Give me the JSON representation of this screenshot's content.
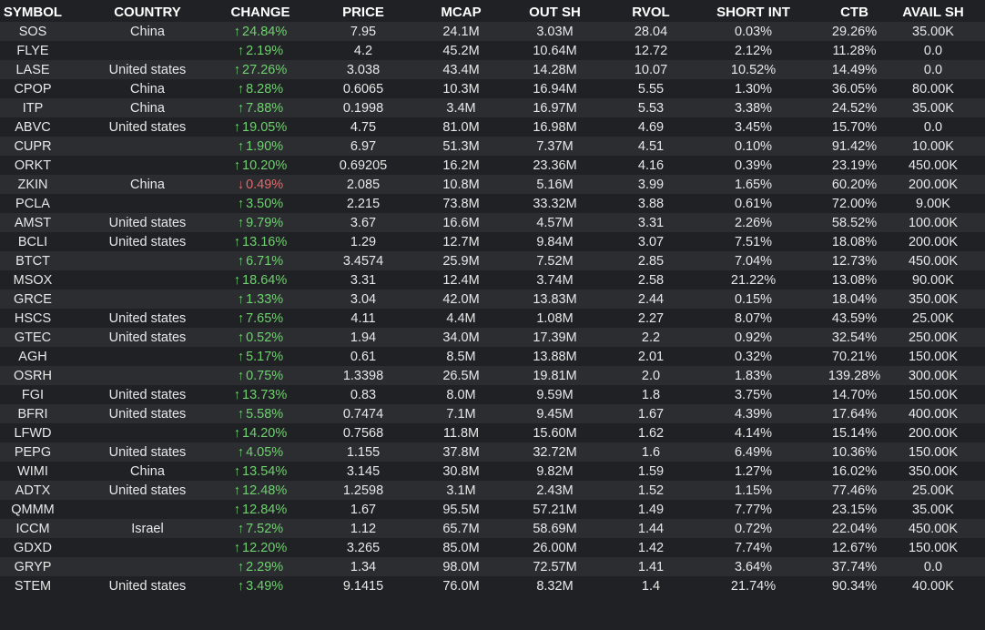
{
  "colors": {
    "background": "#202124",
    "stripe": "#2c2d31",
    "text": "#e8e8e8",
    "up": "#6fd16f",
    "down": "#e36a6a"
  },
  "headers": [
    "SYMBOL",
    "COUNTRY",
    "CHANGE",
    "PRICE",
    "MCAP",
    "OUT SH",
    "RVOL",
    "SHORT INT",
    "CTB",
    "AVAIL SH"
  ],
  "rows": [
    {
      "symbol": "SOS",
      "country": "China",
      "dir": "up",
      "arrow": "↑",
      "change": "24.84%",
      "price": "7.95",
      "mcap": "24.1M",
      "out_sh": "3.03M",
      "rvol": "28.04",
      "short_int": "0.03%",
      "ctb": "29.26%",
      "avail_sh": "35.00K"
    },
    {
      "symbol": "FLYE",
      "country": "",
      "dir": "up",
      "arrow": "↑",
      "change": "2.19%",
      "price": "4.2",
      "mcap": "45.2M",
      "out_sh": "10.64M",
      "rvol": "12.72",
      "short_int": "2.12%",
      "ctb": "11.28%",
      "avail_sh": "0.0"
    },
    {
      "symbol": "LASE",
      "country": "United states",
      "dir": "up",
      "arrow": "↑",
      "change": "27.26%",
      "price": "3.038",
      "mcap": "43.4M",
      "out_sh": "14.28M",
      "rvol": "10.07",
      "short_int": "10.52%",
      "ctb": "14.49%",
      "avail_sh": "0.0"
    },
    {
      "symbol": "CPOP",
      "country": "China",
      "dir": "up",
      "arrow": "↑",
      "change": "8.28%",
      "price": "0.6065",
      "mcap": "10.3M",
      "out_sh": "16.94M",
      "rvol": "5.55",
      "short_int": "1.30%",
      "ctb": "36.05%",
      "avail_sh": "80.00K"
    },
    {
      "symbol": "ITP",
      "country": "China",
      "dir": "up",
      "arrow": "↑",
      "change": "7.88%",
      "price": "0.1998",
      "mcap": "3.4M",
      "out_sh": "16.97M",
      "rvol": "5.53",
      "short_int": "3.38%",
      "ctb": "24.52%",
      "avail_sh": "35.00K"
    },
    {
      "symbol": "ABVC",
      "country": "United states",
      "dir": "up",
      "arrow": "↑",
      "change": "19.05%",
      "price": "4.75",
      "mcap": "81.0M",
      "out_sh": "16.98M",
      "rvol": "4.69",
      "short_int": "3.45%",
      "ctb": "15.70%",
      "avail_sh": "0.0"
    },
    {
      "symbol": "CUPR",
      "country": "",
      "dir": "up",
      "arrow": "↑",
      "change": "1.90%",
      "price": "6.97",
      "mcap": "51.3M",
      "out_sh": "7.37M",
      "rvol": "4.51",
      "short_int": "0.10%",
      "ctb": "91.42%",
      "avail_sh": "10.00K"
    },
    {
      "symbol": "ORKT",
      "country": "",
      "dir": "up",
      "arrow": "↑",
      "change": "10.20%",
      "price": "0.69205",
      "mcap": "16.2M",
      "out_sh": "23.36M",
      "rvol": "4.16",
      "short_int": "0.39%",
      "ctb": "23.19%",
      "avail_sh": "450.00K"
    },
    {
      "symbol": "ZKIN",
      "country": "China",
      "dir": "down",
      "arrow": "↓",
      "change": "0.49%",
      "price": "2.085",
      "mcap": "10.8M",
      "out_sh": "5.16M",
      "rvol": "3.99",
      "short_int": "1.65%",
      "ctb": "60.20%",
      "avail_sh": "200.00K"
    },
    {
      "symbol": "PCLA",
      "country": "",
      "dir": "up",
      "arrow": "↑",
      "change": "3.50%",
      "price": "2.215",
      "mcap": "73.8M",
      "out_sh": "33.32M",
      "rvol": "3.88",
      "short_int": "0.61%",
      "ctb": "72.00%",
      "avail_sh": "9.00K"
    },
    {
      "symbol": "AMST",
      "country": "United states",
      "dir": "up",
      "arrow": "↑",
      "change": "9.79%",
      "price": "3.67",
      "mcap": "16.6M",
      "out_sh": "4.57M",
      "rvol": "3.31",
      "short_int": "2.26%",
      "ctb": "58.52%",
      "avail_sh": "100.00K"
    },
    {
      "symbol": "BCLI",
      "country": "United states",
      "dir": "up",
      "arrow": "↑",
      "change": "13.16%",
      "price": "1.29",
      "mcap": "12.7M",
      "out_sh": "9.84M",
      "rvol": "3.07",
      "short_int": "7.51%",
      "ctb": "18.08%",
      "avail_sh": "200.00K"
    },
    {
      "symbol": "BTCT",
      "country": "",
      "dir": "up",
      "arrow": "↑",
      "change": "6.71%",
      "price": "3.4574",
      "mcap": "25.9M",
      "out_sh": "7.52M",
      "rvol": "2.85",
      "short_int": "7.04%",
      "ctb": "12.73%",
      "avail_sh": "450.00K"
    },
    {
      "symbol": "MSOX",
      "country": "",
      "dir": "up",
      "arrow": "↑",
      "change": "18.64%",
      "price": "3.31",
      "mcap": "12.4M",
      "out_sh": "3.74M",
      "rvol": "2.58",
      "short_int": "21.22%",
      "ctb": "13.08%",
      "avail_sh": "90.00K"
    },
    {
      "symbol": "GRCE",
      "country": "",
      "dir": "up",
      "arrow": "↑",
      "change": "1.33%",
      "price": "3.04",
      "mcap": "42.0M",
      "out_sh": "13.83M",
      "rvol": "2.44",
      "short_int": "0.15%",
      "ctb": "18.04%",
      "avail_sh": "350.00K"
    },
    {
      "symbol": "HSCS",
      "country": "United states",
      "dir": "up",
      "arrow": "↑",
      "change": "7.65%",
      "price": "4.11",
      "mcap": "4.4M",
      "out_sh": "1.08M",
      "rvol": "2.27",
      "short_int": "8.07%",
      "ctb": "43.59%",
      "avail_sh": "25.00K"
    },
    {
      "symbol": "GTEC",
      "country": "United states",
      "dir": "up",
      "arrow": "↑",
      "change": "0.52%",
      "price": "1.94",
      "mcap": "34.0M",
      "out_sh": "17.39M",
      "rvol": "2.2",
      "short_int": "0.92%",
      "ctb": "32.54%",
      "avail_sh": "250.00K"
    },
    {
      "symbol": "AGH",
      "country": "",
      "dir": "up",
      "arrow": "↑",
      "change": "5.17%",
      "price": "0.61",
      "mcap": "8.5M",
      "out_sh": "13.88M",
      "rvol": "2.01",
      "short_int": "0.32%",
      "ctb": "70.21%",
      "avail_sh": "150.00K"
    },
    {
      "symbol": "OSRH",
      "country": "",
      "dir": "up",
      "arrow": "↑",
      "change": "0.75%",
      "price": "1.3398",
      "mcap": "26.5M",
      "out_sh": "19.81M",
      "rvol": "2.0",
      "short_int": "1.83%",
      "ctb": "139.28%",
      "avail_sh": "300.00K"
    },
    {
      "symbol": "FGI",
      "country": "United states",
      "dir": "up",
      "arrow": "↑",
      "change": "13.73%",
      "price": "0.83",
      "mcap": "8.0M",
      "out_sh": "9.59M",
      "rvol": "1.8",
      "short_int": "3.75%",
      "ctb": "14.70%",
      "avail_sh": "150.00K"
    },
    {
      "symbol": "BFRI",
      "country": "United states",
      "dir": "up",
      "arrow": "↑",
      "change": "5.58%",
      "price": "0.7474",
      "mcap": "7.1M",
      "out_sh": "9.45M",
      "rvol": "1.67",
      "short_int": "4.39%",
      "ctb": "17.64%",
      "avail_sh": "400.00K"
    },
    {
      "symbol": "LFWD",
      "country": "",
      "dir": "up",
      "arrow": "↑",
      "change": "14.20%",
      "price": "0.7568",
      "mcap": "11.8M",
      "out_sh": "15.60M",
      "rvol": "1.62",
      "short_int": "4.14%",
      "ctb": "15.14%",
      "avail_sh": "200.00K"
    },
    {
      "symbol": "PEPG",
      "country": "United states",
      "dir": "up",
      "arrow": "↑",
      "change": "4.05%",
      "price": "1.155",
      "mcap": "37.8M",
      "out_sh": "32.72M",
      "rvol": "1.6",
      "short_int": "6.49%",
      "ctb": "10.36%",
      "avail_sh": "150.00K"
    },
    {
      "symbol": "WIMI",
      "country": "China",
      "dir": "up",
      "arrow": "↑",
      "change": "13.54%",
      "price": "3.145",
      "mcap": "30.8M",
      "out_sh": "9.82M",
      "rvol": "1.59",
      "short_int": "1.27%",
      "ctb": "16.02%",
      "avail_sh": "350.00K"
    },
    {
      "symbol": "ADTX",
      "country": "United states",
      "dir": "up",
      "arrow": "↑",
      "change": "12.48%",
      "price": "1.2598",
      "mcap": "3.1M",
      "out_sh": "2.43M",
      "rvol": "1.52",
      "short_int": "1.15%",
      "ctb": "77.46%",
      "avail_sh": "25.00K"
    },
    {
      "symbol": "QMMM",
      "country": "",
      "dir": "up",
      "arrow": "↑",
      "change": "12.84%",
      "price": "1.67",
      "mcap": "95.5M",
      "out_sh": "57.21M",
      "rvol": "1.49",
      "short_int": "7.77%",
      "ctb": "23.15%",
      "avail_sh": "35.00K"
    },
    {
      "symbol": "ICCM",
      "country": "Israel",
      "dir": "up",
      "arrow": "↑",
      "change": "7.52%",
      "price": "1.12",
      "mcap": "65.7M",
      "out_sh": "58.69M",
      "rvol": "1.44",
      "short_int": "0.72%",
      "ctb": "22.04%",
      "avail_sh": "450.00K"
    },
    {
      "symbol": "GDXD",
      "country": "",
      "dir": "up",
      "arrow": "↑",
      "change": "12.20%",
      "price": "3.265",
      "mcap": "85.0M",
      "out_sh": "26.00M",
      "rvol": "1.42",
      "short_int": "7.74%",
      "ctb": "12.67%",
      "avail_sh": "150.00K"
    },
    {
      "symbol": "GRYP",
      "country": "",
      "dir": "up",
      "arrow": "↑",
      "change": "2.29%",
      "price": "1.34",
      "mcap": "98.0M",
      "out_sh": "72.57M",
      "rvol": "1.41",
      "short_int": "3.64%",
      "ctb": "37.74%",
      "avail_sh": "0.0"
    },
    {
      "symbol": "STEM",
      "country": "United states",
      "dir": "up",
      "arrow": "↑",
      "change": "3.49%",
      "price": "9.1415",
      "mcap": "76.0M",
      "out_sh": "8.32M",
      "rvol": "1.4",
      "short_int": "21.74%",
      "ctb": "90.34%",
      "avail_sh": "40.00K"
    }
  ]
}
